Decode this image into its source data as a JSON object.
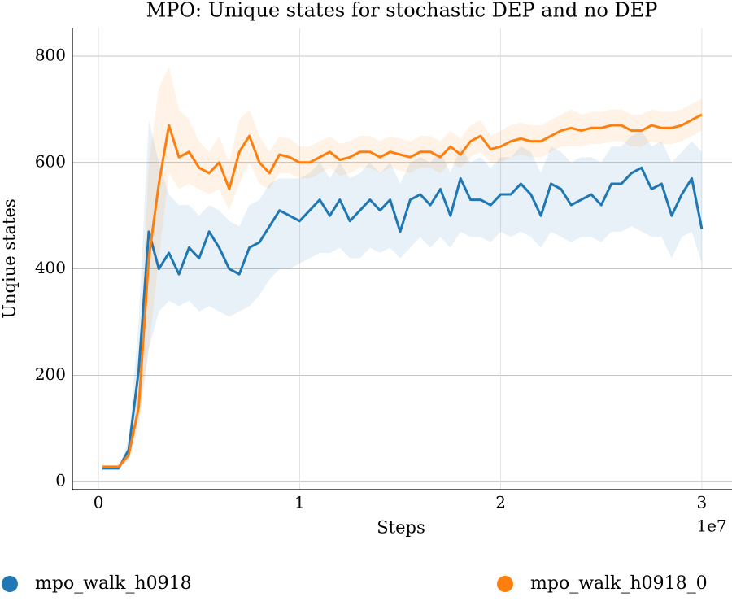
{
  "chart_data": {
    "type": "line",
    "title": "MPO: Unique states for stochastic DEP and no DEP",
    "x_label": "Steps",
    "y_label": "Unqiue states",
    "x_offset_label": "1e7",
    "xlim": [
      -0.13,
      3.15
    ],
    "ylim": [
      -15,
      852
    ],
    "xticks": [
      0,
      1,
      2,
      3
    ],
    "yticks": [
      0,
      200,
      400,
      600,
      800
    ],
    "grid": true,
    "legend": "bottom",
    "x": [
      0.02,
      0.05,
      0.1,
      0.15,
      0.2,
      0.25,
      0.3,
      0.35,
      0.4,
      0.45,
      0.5,
      0.55,
      0.6,
      0.65,
      0.7,
      0.75,
      0.8,
      0.85,
      0.9,
      0.95,
      1,
      1.05,
      1.1,
      1.15,
      1.2,
      1.25,
      1.3,
      1.35,
      1.4,
      1.45,
      1.5,
      1.55,
      1.6,
      1.65,
      1.7,
      1.75,
      1.8,
      1.85,
      1.9,
      1.95,
      2,
      2.05,
      2.1,
      2.15,
      2.2,
      2.25,
      2.3,
      2.35,
      2.4,
      2.45,
      2.5,
      2.55,
      2.6,
      2.65,
      2.7,
      2.75,
      2.8,
      2.85,
      2.9,
      2.95,
      3
    ],
    "series": [
      {
        "name": "mpo_walk_h0918",
        "color": "#1f77b4",
        "values": [
          25,
          25,
          25,
          60,
          210,
          470,
          400,
          430,
          390,
          440,
          420,
          470,
          440,
          400,
          390,
          440,
          450,
          480,
          510,
          500,
          490,
          510,
          530,
          500,
          530,
          490,
          510,
          530,
          510,
          530,
          470,
          530,
          540,
          520,
          550,
          500,
          570,
          530,
          530,
          520,
          540,
          540,
          560,
          540,
          500,
          560,
          550,
          520,
          530,
          540,
          520,
          560,
          560,
          580,
          590,
          550,
          560,
          500,
          540,
          570,
          475
        ],
        "band_lower": [
          25,
          25,
          25,
          40,
          120,
          250,
          320,
          340,
          330,
          340,
          320,
          330,
          320,
          310,
          320,
          330,
          350,
          380,
          400,
          400,
          410,
          420,
          430,
          430,
          440,
          420,
          420,
          440,
          430,
          440,
          420,
          440,
          460,
          440,
          460,
          440,
          470,
          460,
          460,
          450,
          470,
          460,
          470,
          460,
          440,
          470,
          460,
          450,
          460,
          460,
          450,
          470,
          470,
          480,
          470,
          460,
          460,
          420,
          460,
          470,
          410
        ],
        "band_upper": [
          25,
          25,
          25,
          80,
          300,
          680,
          600,
          540,
          520,
          520,
          500,
          520,
          510,
          490,
          480,
          520,
          530,
          560,
          570,
          570,
          570,
          580,
          600,
          570,
          600,
          570,
          580,
          600,
          580,
          600,
          560,
          600,
          610,
          600,
          620,
          580,
          630,
          600,
          610,
          590,
          610,
          610,
          630,
          620,
          580,
          630,
          620,
          600,
          610,
          610,
          600,
          630,
          630,
          650,
          660,
          630,
          640,
          600,
          620,
          640,
          620
        ]
      },
      {
        "name": "mpo_walk_h0918_0",
        "color": "#ff7f0e",
        "values": [
          28,
          28,
          28,
          50,
          140,
          420,
          560,
          670,
          610,
          620,
          590,
          580,
          600,
          550,
          620,
          650,
          600,
          580,
          615,
          610,
          600,
          600,
          610,
          620,
          605,
          610,
          620,
          620,
          610,
          620,
          615,
          610,
          620,
          620,
          610,
          630,
          615,
          640,
          650,
          625,
          630,
          640,
          645,
          640,
          640,
          650,
          660,
          665,
          660,
          665,
          665,
          670,
          670,
          660,
          660,
          670,
          665,
          665,
          670,
          680,
          690
        ],
        "band_lower": [
          28,
          28,
          28,
          40,
          100,
          250,
          420,
          580,
          550,
          560,
          550,
          540,
          550,
          510,
          560,
          600,
          560,
          550,
          580,
          580,
          570,
          570,
          580,
          590,
          575,
          580,
          590,
          590,
          580,
          590,
          585,
          580,
          590,
          590,
          580,
          600,
          590,
          610,
          620,
          600,
          600,
          610,
          615,
          610,
          610,
          620,
          630,
          630,
          630,
          635,
          635,
          640,
          640,
          630,
          630,
          640,
          635,
          635,
          640,
          650,
          660
        ],
        "band_upper": [
          28,
          28,
          28,
          60,
          200,
          600,
          740,
          780,
          700,
          680,
          640,
          620,
          650,
          600,
          680,
          700,
          650,
          620,
          650,
          645,
          630,
          630,
          640,
          650,
          635,
          640,
          650,
          650,
          640,
          650,
          645,
          640,
          650,
          650,
          640,
          660,
          645,
          670,
          680,
          650,
          660,
          670,
          675,
          670,
          670,
          680,
          690,
          700,
          690,
          695,
          695,
          700,
          700,
          690,
          690,
          700,
          695,
          695,
          700,
          710,
          720
        ]
      }
    ]
  }
}
